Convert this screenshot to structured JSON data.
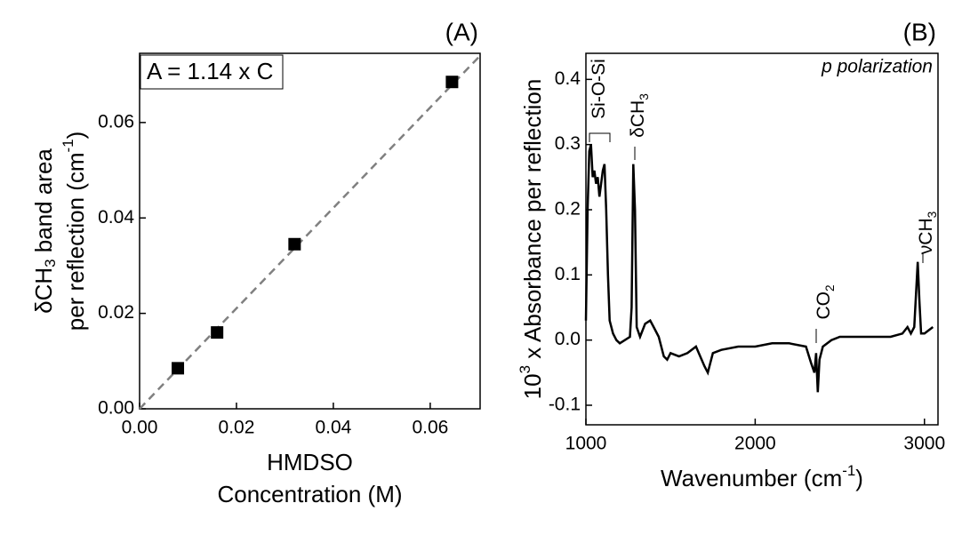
{
  "chart_data": [
    {
      "type": "scatter",
      "panel_label": "(A)",
      "annotation": "A = 1.14 x C",
      "x_label": [
        [
          {
            "text": "HMDSO"
          }
        ],
        [
          {
            "text": "Concentration (M)"
          }
        ]
      ],
      "y_label": [
        [
          {
            "text": "δCH"
          },
          {
            "text": "3",
            "script": "sub"
          },
          {
            "text": " band area"
          }
        ],
        [
          {
            "text": "per reflection (cm"
          },
          {
            "text": "-1",
            "script": "sup"
          },
          {
            "text": ")"
          }
        ]
      ],
      "x": [
        0.0079,
        0.016,
        0.032,
        0.0645
      ],
      "values": [
        0.0085,
        0.016,
        0.0345,
        0.0685
      ],
      "color": "#000000",
      "fit": {
        "x": [
          0,
          0.0703
        ],
        "values": [
          0,
          0.074
        ],
        "color": "#808080",
        "dashed": true
      },
      "xlim": [
        0,
        0.0703
      ],
      "ylim": [
        0,
        0.0745
      ],
      "xticks": [
        {
          "value": 0,
          "label": "0.00"
        },
        {
          "value": 0.02,
          "label": "0.02"
        },
        {
          "value": 0.04,
          "label": "0.04"
        },
        {
          "value": 0.06,
          "label": "0.06"
        }
      ],
      "yticks": [
        {
          "value": 0,
          "label": "0.00"
        },
        {
          "value": 0.02,
          "label": "0.02"
        },
        {
          "value": 0.04,
          "label": "0.04"
        },
        {
          "value": 0.06,
          "label": "0.06"
        }
      ]
    },
    {
      "type": "line",
      "panel_label": "(B)",
      "annotation": "p polarization",
      "x_label": [
        [
          {
            "text": "Wavenumber (cm"
          },
          {
            "text": "-1",
            "script": "sup"
          },
          {
            "text": ")"
          }
        ]
      ],
      "y_label": [
        [
          {
            "text": "10"
          },
          {
            "text": "3",
            "script": "sup"
          },
          {
            "text": " x Absorbance per reflection"
          }
        ]
      ],
      "peaks": [
        [
          {
            "text": "Si-O-Si"
          }
        ],
        [
          {
            "text": "δCH"
          },
          {
            "text": "3",
            "script": "sub"
          }
        ],
        [
          {
            "text": "CO"
          },
          {
            "text": "2",
            "script": "sub"
          }
        ],
        [
          {
            "text": "νCH"
          },
          {
            "text": "3",
            "script": "sub"
          }
        ]
      ],
      "x": [
        1000,
        1010,
        1020,
        1030,
        1040,
        1050,
        1060,
        1070,
        1080,
        1090,
        1100,
        1110,
        1120,
        1130,
        1140,
        1160,
        1180,
        1200,
        1230,
        1260,
        1270,
        1280,
        1290,
        1300,
        1320,
        1350,
        1380,
        1400,
        1430,
        1460,
        1480,
        1500,
        1550,
        1600,
        1650,
        1700,
        1720,
        1750,
        1800,
        1900,
        2000,
        2100,
        2200,
        2300,
        2330,
        2350,
        2360,
        2370,
        2380,
        2400,
        2450,
        2500,
        2600,
        2700,
        2800,
        2870,
        2900,
        2920,
        2940,
        2960,
        2970,
        2980,
        3000,
        3050
      ],
      "values": [
        0.03,
        0.2,
        0.29,
        0.3,
        0.25,
        0.26,
        0.24,
        0.25,
        0.22,
        0.24,
        0.26,
        0.27,
        0.2,
        0.1,
        0.03,
        0.01,
        0,
        -0.005,
        0,
        0.005,
        0.05,
        0.27,
        0.2,
        0.02,
        0.005,
        0.025,
        0.03,
        0.02,
        0.005,
        -0.025,
        -0.03,
        -0.02,
        -0.025,
        -0.02,
        -0.01,
        -0.04,
        -0.05,
        -0.02,
        -0.015,
        -0.01,
        -0.01,
        -0.005,
        -0.005,
        -0.01,
        -0.035,
        -0.05,
        -0.02,
        -0.08,
        -0.03,
        -0.01,
        0,
        0.005,
        0.005,
        0.005,
        0.005,
        0.01,
        0.02,
        0.01,
        0.02,
        0.12,
        0.06,
        0.01,
        0.01,
        0.02
      ],
      "color": "#000000",
      "xlim": [
        1000,
        3080
      ],
      "ylim": [
        -0.13,
        0.44
      ],
      "xticks": [
        1000,
        2000,
        3000
      ],
      "yticks": [
        -0.1,
        {
          "value": 0,
          "label": "0.0"
        },
        0.1,
        0.2,
        0.3,
        0.4
      ]
    }
  ]
}
